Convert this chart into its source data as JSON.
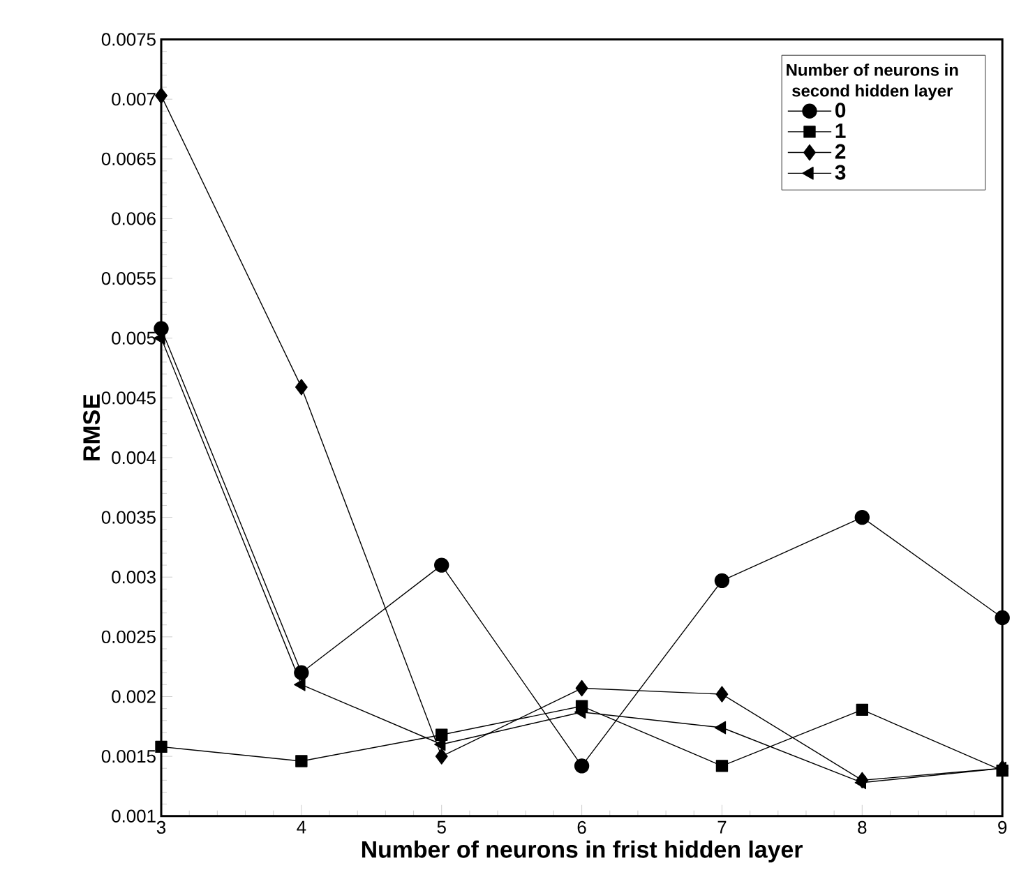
{
  "chart_data": {
    "type": "line",
    "xlabel": "Number of neurons in frist hidden layer",
    "ylabel": "RMSE",
    "legend_title": "Number of neurons in second hidden layer",
    "x": [
      3,
      4,
      5,
      6,
      7,
      8,
      9
    ],
    "series": [
      {
        "name": "0",
        "color": "#000000",
        "marker": "circle",
        "values": [
          0.00508,
          0.0022,
          0.0031,
          0.00142,
          0.00297,
          0.0035,
          0.00266
        ]
      },
      {
        "name": "1",
        "color": "#000000",
        "marker": "square",
        "values": [
          0.00158,
          0.00146,
          0.00168,
          0.00192,
          0.00142,
          0.00189,
          0.00138
        ]
      },
      {
        "name": "2",
        "color": "#000000",
        "marker": "diamond",
        "values": [
          0.00703,
          0.00459,
          0.0015,
          0.00207,
          0.00202,
          0.0013,
          0.0014
        ]
      },
      {
        "name": "3",
        "color": "#000000",
        "marker": "triangle",
        "values": [
          0.005,
          0.0021,
          0.0016,
          0.00187,
          0.00174,
          0.00128,
          0.0014
        ]
      }
    ],
    "xlim": [
      3,
      9
    ],
    "ylim": [
      0.001,
      0.0075
    ],
    "xticks": [
      3,
      4,
      5,
      6,
      7,
      8,
      9
    ],
    "yticks": [
      0.001,
      0.0015,
      0.002,
      0.0025,
      0.003,
      0.0035,
      0.004,
      0.0045,
      0.005,
      0.0055,
      0.006,
      0.0065,
      0.007,
      0.0075
    ],
    "grid": false,
    "legend": "top right",
    "line_style": "solid"
  }
}
